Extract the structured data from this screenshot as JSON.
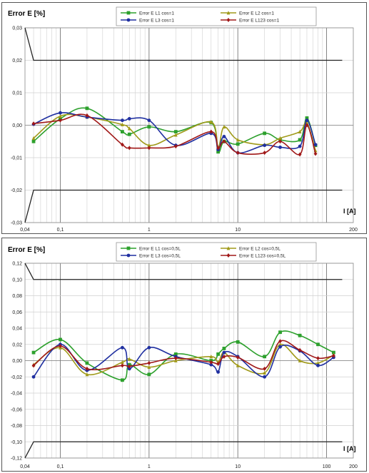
{
  "chart_data": [
    {
      "type": "line",
      "title": "",
      "ylabel": "Error E [%]",
      "xlabel": "I [A]",
      "xscale": "log",
      "xlim": [
        0.04,
        200
      ],
      "ylim": [
        -0.03,
        0.03
      ],
      "yticks": [
        "0,03",
        "0,02",
        "0,01",
        "0,00",
        "-0,01",
        "-0,02",
        "-0,03"
      ],
      "ytick_values": [
        0.03,
        0.02,
        0.01,
        0.0,
        -0.01,
        -0.02,
        -0.03
      ],
      "xticks": [
        "0,04",
        "0,1",
        "1",
        "10",
        "200"
      ],
      "xtick_values": [
        0.04,
        0.1,
        1,
        10,
        200
      ],
      "grid": true,
      "legend_position": "top",
      "limits": {
        "upper": [
          [
            0.04,
            0.031
          ],
          [
            0.05,
            0.02
          ],
          [
            150,
            0.02
          ]
        ],
        "lower": [
          [
            0.04,
            -0.031
          ],
          [
            0.05,
            -0.02
          ],
          [
            150,
            -0.02
          ]
        ]
      },
      "series": [
        {
          "name": "Error E L1 cos=1",
          "color": "#2ca02c",
          "marker": "square",
          "x": [
            0.05,
            0.1,
            0.2,
            0.5,
            0.6,
            1,
            2,
            5,
            6,
            7,
            10,
            20,
            30,
            50,
            60,
            75
          ],
          "y": [
            -0.005,
            0.002,
            0.0052,
            -0.002,
            -0.0028,
            -0.0005,
            -0.002,
            0.0008,
            -0.0082,
            -0.005,
            -0.0058,
            -0.0025,
            -0.0045,
            -0.0045,
            0.0022,
            -0.0062
          ]
        },
        {
          "name": "Error E L2 cos=1",
          "color": "#a09a1a",
          "marker": "triangle",
          "x": [
            0.05,
            0.1,
            0.2,
            0.5,
            0.6,
            1,
            2,
            5,
            6,
            7,
            10,
            20,
            30,
            50,
            60,
            75
          ],
          "y": [
            -0.004,
            0.0028,
            0.0025,
            0.0002,
            -0.001,
            -0.0062,
            -0.003,
            0.001,
            -0.0068,
            -0.0005,
            -0.0045,
            -0.006,
            -0.004,
            -0.002,
            0.0008,
            -0.0078
          ]
        },
        {
          "name": "Error E L3 cos=1",
          "color": "#1f2fa0",
          "marker": "circle",
          "x": [
            0.05,
            0.1,
            0.2,
            0.5,
            0.6,
            1,
            2,
            5,
            6,
            7,
            10,
            20,
            30,
            50,
            60,
            75
          ],
          "y": [
            0.0003,
            0.0038,
            0.0025,
            0.0015,
            0.002,
            0.0015,
            -0.0062,
            -0.0025,
            -0.0075,
            -0.0035,
            -0.0085,
            -0.0062,
            -0.0068,
            -0.0065,
            0.0015,
            -0.006
          ]
        },
        {
          "name": "Error E L123 cos=1",
          "color": "#a01818",
          "marker": "diamond",
          "x": [
            0.05,
            0.1,
            0.2,
            0.5,
            0.6,
            1,
            2,
            5,
            6,
            7,
            10,
            20,
            30,
            50,
            60,
            75
          ],
          "y": [
            0.0005,
            0.0015,
            0.003,
            -0.006,
            -0.007,
            -0.007,
            -0.0065,
            -0.002,
            -0.007,
            -0.005,
            -0.0085,
            -0.0085,
            -0.005,
            -0.009,
            0.0,
            -0.0088
          ]
        }
      ]
    },
    {
      "type": "line",
      "title": "",
      "ylabel": "Error E [%]",
      "xlabel": "I [A]",
      "xscale": "log",
      "xlim": [
        0.04,
        200
      ],
      "ylim": [
        -0.12,
        0.12
      ],
      "yticks": [
        "0,12",
        "0,10",
        "0,08",
        "0,06",
        "0,04",
        "0,02",
        "0,00",
        "-0,02",
        "-0,04",
        "-0,06",
        "-0,08",
        "-0,10",
        "-0,12"
      ],
      "ytick_values": [
        0.12,
        0.1,
        0.08,
        0.06,
        0.04,
        0.02,
        0.0,
        -0.02,
        -0.04,
        -0.06,
        -0.08,
        -0.1,
        -0.12
      ],
      "xticks": [
        "0,04",
        "0,1",
        "1",
        "10",
        "100",
        "200"
      ],
      "xtick_values": [
        0.04,
        0.1,
        1,
        10,
        100,
        200
      ],
      "grid": true,
      "legend_position": "top",
      "limits": {
        "upper": [
          [
            0.04,
            0.122
          ],
          [
            0.05,
            0.1
          ],
          [
            150,
            0.1
          ]
        ],
        "lower": [
          [
            0.04,
            -0.122
          ],
          [
            0.05,
            -0.1
          ],
          [
            150,
            -0.1
          ]
        ]
      },
      "series": [
        {
          "name": "Error E L1 cos=0,5L",
          "color": "#2ca02c",
          "marker": "square",
          "x": [
            0.05,
            0.1,
            0.2,
            0.5,
            0.6,
            1,
            2,
            5,
            6,
            7,
            10,
            20,
            30,
            50,
            80,
            120
          ],
          "y": [
            0.01,
            0.026,
            -0.003,
            -0.024,
            -0.005,
            -0.017,
            0.008,
            0.0,
            0.008,
            0.015,
            0.023,
            0.005,
            0.035,
            0.031,
            0.02,
            0.01
          ]
        },
        {
          "name": "Error E L2 cos=0,5L",
          "color": "#a09a1a",
          "marker": "triangle",
          "x": [
            0.05,
            0.1,
            0.2,
            0.5,
            0.6,
            1,
            2,
            5,
            6,
            7,
            10,
            20,
            30,
            50,
            80,
            120
          ],
          "y": [
            -0.005,
            0.016,
            -0.017,
            -0.002,
            0.002,
            -0.008,
            0.0,
            0.005,
            -0.002,
            0.01,
            -0.006,
            -0.015,
            0.02,
            0.0,
            -0.003,
            0.007
          ]
        },
        {
          "name": "Error E L3 cos=0,5L",
          "color": "#1f2fa0",
          "marker": "circle",
          "x": [
            0.05,
            0.1,
            0.2,
            0.5,
            0.6,
            1,
            2,
            5,
            6,
            7,
            10,
            20,
            30,
            50,
            80,
            120
          ],
          "y": [
            -0.02,
            0.02,
            -0.012,
            0.016,
            -0.01,
            0.016,
            0.005,
            -0.005,
            -0.014,
            0.01,
            0.005,
            -0.02,
            0.017,
            0.012,
            -0.006,
            0.004
          ]
        },
        {
          "name": "Error E L123 cos=0,5L",
          "color": "#a01818",
          "marker": "diamond",
          "x": [
            0.05,
            0.1,
            0.2,
            0.5,
            0.6,
            1,
            2,
            5,
            6,
            7,
            10,
            20,
            30,
            50,
            80,
            120
          ],
          "y": [
            -0.006,
            0.018,
            -0.01,
            -0.006,
            -0.007,
            -0.003,
            0.003,
            -0.002,
            -0.004,
            0.005,
            0.004,
            -0.01,
            0.024,
            0.013,
            0.003,
            0.006
          ]
        }
      ]
    }
  ]
}
